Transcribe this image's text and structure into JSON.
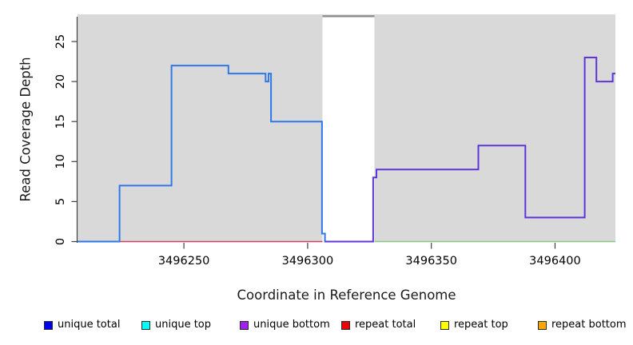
{
  "chart_data": {
    "type": "line",
    "subtype": "step-coverage-plot",
    "title": "",
    "xlabel": "Coordinate in Reference Genome",
    "ylabel": "Read Coverage Depth",
    "x_ticks": [
      3496250,
      3496300,
      3496350,
      3496400
    ],
    "y_ticks": [
      0,
      5,
      10,
      15,
      20,
      25
    ],
    "xlim": [
      3496207,
      3496424.4
    ],
    "ylim": [
      0,
      28.4
    ],
    "grid": false,
    "plot_background_color": "#D9D9D9",
    "gap_region": {
      "x_start": 3496306,
      "x_end": 3496327,
      "fill": "#FFFFFF",
      "top_bar_color": "#8C8C8C"
    },
    "series": [
      {
        "name": "repeat total",
        "color": "#CC4466",
        "width": 1.6,
        "points": [
          [
            3496207,
            0
          ]
        ],
        "x_end": 3496306
      },
      {
        "name": "unlabeled green baseline",
        "color": "#88C988",
        "width": 1.6,
        "points": [
          [
            3496327,
            0
          ]
        ],
        "x_end": 3496424.4
      },
      {
        "name": "unique total",
        "color": "#3078E8",
        "width": 2,
        "points": [
          [
            3496207,
            0
          ],
          [
            3496224,
            7
          ],
          [
            3496245,
            22
          ],
          [
            3496268,
            21
          ],
          [
            3496283,
            20
          ],
          [
            3496284.2,
            21
          ],
          [
            3496285.2,
            15
          ],
          [
            3496305.8,
            1
          ],
          [
            3496307,
            0
          ]
        ],
        "x_end": 3496307.5
      },
      {
        "name": "unique bottom",
        "color": "#5E35D8",
        "width": 2,
        "points": [
          [
            3496307,
            0
          ],
          [
            3496326.5,
            8
          ],
          [
            3496327.8,
            9
          ],
          [
            3496369,
            12
          ],
          [
            3496388,
            3
          ],
          [
            3496412,
            23
          ],
          [
            3496416.7,
            20
          ],
          [
            3496423.3,
            21
          ]
        ],
        "x_end": 3496424.4
      }
    ],
    "legend": [
      {
        "label": "unique total",
        "color": "#0000EE"
      },
      {
        "label": "unique top",
        "color": "#00FFFF"
      },
      {
        "label": "unique bottom",
        "color": "#A020F0"
      },
      {
        "label": "repeat total",
        "color": "#EE0000"
      },
      {
        "label": "repeat top",
        "color": "#FFFF00"
      },
      {
        "label": "repeat bottom",
        "color": "#FFA500"
      }
    ],
    "legend_position": "bottom"
  }
}
